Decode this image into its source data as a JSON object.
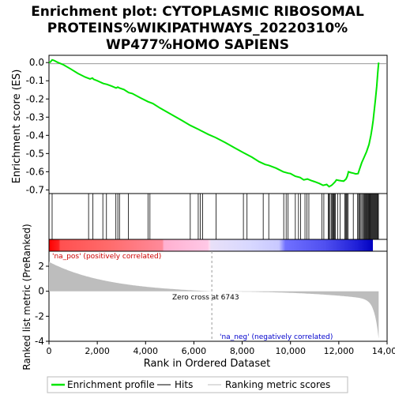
{
  "chart_data": {
    "type": "line",
    "title_lines": [
      "Enrichment plot: CYTOPLASMIC RIBOSOMAL",
      "PROTEINS%WIKIPATHWAYS_20220310%",
      "WP477%HOMO SAPIENS"
    ],
    "xlabel": "Rank in Ordered Dataset",
    "ylabel_top": "Enrichment score (ES)",
    "ylabel_bottom": "Ranked list metric (PreRanked)",
    "xlim": [
      0,
      14000
    ],
    "ylim_top": [
      -0.72,
      0.04
    ],
    "ylim_bottom": [
      -4,
      3.2
    ],
    "x_ticks": [
      0,
      2000,
      4000,
      6000,
      8000,
      10000,
      12000,
      14000
    ],
    "x_tick_labels": [
      "0",
      "2,000",
      "4,000",
      "6,000",
      "8,000",
      "10,000",
      "12,000",
      "14,000"
    ],
    "y_ticks_top": [
      0.0,
      -0.1,
      -0.2,
      -0.3,
      -0.4,
      -0.5,
      -0.6,
      -0.7
    ],
    "y_tick_labels_top": [
      "0.0",
      "-0.1",
      "-0.2",
      "-0.3",
      "-0.4",
      "-0.5",
      "-0.6",
      "-0.7"
    ],
    "y_ticks_bottom": [
      2,
      0,
      -2,
      -4
    ],
    "y_tick_labels_bottom": [
      "2",
      "0",
      "-2",
      "-4"
    ],
    "n_genes": 13650,
    "zero_cross": 6743,
    "zero_cross_label": "Zero cross at 6743",
    "pos_label": "'na_pos' (positively correlated)",
    "neg_label": "'na_neg' (negatively correlated)",
    "legend": [
      "Enrichment profile",
      "Hits",
      "Ranking metric scores"
    ],
    "es_profile": [
      [
        0,
        0.0
      ],
      [
        60,
        0.003
      ],
      [
        130,
        0.015
      ],
      [
        200,
        0.012
      ],
      [
        350,
        0.002
      ],
      [
        600,
        -0.012
      ],
      [
        900,
        -0.035
      ],
      [
        1200,
        -0.06
      ],
      [
        1500,
        -0.08
      ],
      [
        1640,
        -0.087
      ],
      [
        1700,
        -0.09
      ],
      [
        1800,
        -0.085
      ],
      [
        1850,
        -0.092
      ],
      [
        2000,
        -0.1
      ],
      [
        2250,
        -0.115
      ],
      [
        2400,
        -0.12
      ],
      [
        2600,
        -0.13
      ],
      [
        2780,
        -0.14
      ],
      [
        2850,
        -0.135
      ],
      [
        2920,
        -0.14
      ],
      [
        3100,
        -0.148
      ],
      [
        3300,
        -0.165
      ],
      [
        3450,
        -0.17
      ],
      [
        3800,
        -0.195
      ],
      [
        4100,
        -0.215
      ],
      [
        4300,
        -0.225
      ],
      [
        4600,
        -0.25
      ],
      [
        5000,
        -0.28
      ],
      [
        5500,
        -0.318
      ],
      [
        5850,
        -0.345
      ],
      [
        6200,
        -0.368
      ],
      [
        6350,
        -0.378
      ],
      [
        6600,
        -0.395
      ],
      [
        6900,
        -0.412
      ],
      [
        7300,
        -0.44
      ],
      [
        7700,
        -0.47
      ],
      [
        8050,
        -0.495
      ],
      [
        8400,
        -0.52
      ],
      [
        8700,
        -0.545
      ],
      [
        8950,
        -0.56
      ],
      [
        9100,
        -0.565
      ],
      [
        9400,
        -0.58
      ],
      [
        9700,
        -0.6
      ],
      [
        9900,
        -0.608
      ],
      [
        10000,
        -0.61
      ],
      [
        10200,
        -0.625
      ],
      [
        10400,
        -0.632
      ],
      [
        10550,
        -0.645
      ],
      [
        10700,
        -0.64
      ],
      [
        10850,
        -0.648
      ],
      [
        11000,
        -0.655
      ],
      [
        11200,
        -0.665
      ],
      [
        11350,
        -0.675
      ],
      [
        11500,
        -0.67
      ],
      [
        11600,
        -0.682
      ],
      [
        11700,
        -0.675
      ],
      [
        11780,
        -0.665
      ],
      [
        11850,
        -0.655
      ],
      [
        11900,
        -0.645
      ],
      [
        12000,
        -0.648
      ],
      [
        12100,
        -0.65
      ],
      [
        12200,
        -0.652
      ],
      [
        12300,
        -0.64
      ],
      [
        12350,
        -0.625
      ],
      [
        12400,
        -0.6
      ],
      [
        12500,
        -0.605
      ],
      [
        12600,
        -0.608
      ],
      [
        12700,
        -0.612
      ],
      [
        12800,
        -0.61
      ],
      [
        12850,
        -0.59
      ],
      [
        12950,
        -0.55
      ],
      [
        13050,
        -0.52
      ],
      [
        13150,
        -0.49
      ],
      [
        13250,
        -0.45
      ],
      [
        13330,
        -0.4
      ],
      [
        13380,
        -0.36
      ],
      [
        13420,
        -0.32
      ],
      [
        13470,
        -0.26
      ],
      [
        13520,
        -0.2
      ],
      [
        13570,
        -0.13
      ],
      [
        13610,
        -0.06
      ],
      [
        13650,
        0.0
      ]
    ],
    "hits": [
      130,
      1640,
      1820,
      2230,
      2380,
      2770,
      2850,
      2920,
      3290,
      4100,
      4180,
      5850,
      6180,
      6260,
      6360,
      6920,
      8050,
      8200,
      8870,
      9100,
      9720,
      9820,
      9900,
      10200,
      10330,
      10420,
      10600,
      10680,
      10760,
      11300,
      11380,
      11560,
      11600,
      11640,
      11700,
      11720,
      11760,
      11790,
      11820,
      11860,
      11950,
      12050,
      12250,
      12290,
      12320,
      12360,
      12380,
      12600,
      12780,
      12820,
      12860,
      12890,
      12950,
      12990,
      13030,
      13070,
      13100,
      13130,
      13160,
      13190,
      13220,
      13250,
      13280,
      13310,
      13340,
      13370,
      13400,
      13430,
      13460,
      13490,
      13520,
      13550,
      13580,
      13610,
      13640
    ]
  }
}
